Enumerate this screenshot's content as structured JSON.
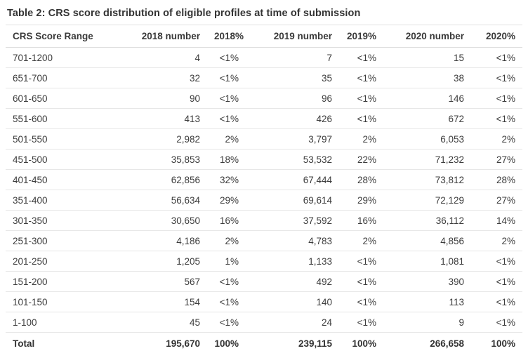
{
  "chart_data": {
    "type": "table",
    "title": "Table 2: CRS score distribution of eligible profiles at time of submission",
    "columns": [
      "CRS Score Range",
      "2018 number",
      "2018%",
      "2019 number",
      "2019%",
      "2020 number",
      "2020%"
    ],
    "rows": [
      [
        "701-1200",
        "4",
        "<1%",
        "7",
        "<1%",
        "15",
        "<1%"
      ],
      [
        "651-700",
        "32",
        "<1%",
        "35",
        "<1%",
        "38",
        "<1%"
      ],
      [
        "601-650",
        "90",
        "<1%",
        "96",
        "<1%",
        "146",
        "<1%"
      ],
      [
        "551-600",
        "413",
        "<1%",
        "426",
        "<1%",
        "672",
        "<1%"
      ],
      [
        "501-550",
        "2,982",
        "2%",
        "3,797",
        "2%",
        "6,053",
        "2%"
      ],
      [
        "451-500",
        "35,853",
        "18%",
        "53,532",
        "22%",
        "71,232",
        "27%"
      ],
      [
        "401-450",
        "62,856",
        "32%",
        "67,444",
        "28%",
        "73,812",
        "28%"
      ],
      [
        "351-400",
        "56,634",
        "29%",
        "69,614",
        "29%",
        "72,129",
        "27%"
      ],
      [
        "301-350",
        "30,650",
        "16%",
        "37,592",
        "16%",
        "36,112",
        "14%"
      ],
      [
        "251-300",
        "4,186",
        "2%",
        "4,783",
        "2%",
        "4,856",
        "2%"
      ],
      [
        "201-250",
        "1,205",
        "1%",
        "1,133",
        "<1%",
        "1,081",
        "<1%"
      ],
      [
        "151-200",
        "567",
        "<1%",
        "492",
        "<1%",
        "390",
        "<1%"
      ],
      [
        "101-150",
        "154",
        "<1%",
        "140",
        "<1%",
        "113",
        "<1%"
      ],
      [
        "1-100",
        "45",
        "<1%",
        "24",
        "<1%",
        "9",
        "<1%"
      ]
    ],
    "total_row": [
      "Total",
      "195,670",
      "100%",
      "239,115",
      "100%",
      "266,658",
      "100%"
    ],
    "layout": {
      "grid": "horizontal-rules-only",
      "header_bold": true,
      "total_bold": true
    },
    "colors": {
      "text": "#3c3c3c",
      "title_text": "#333333",
      "row_border": "#e7e7e7",
      "total_border": "#c9c9c9",
      "background": "#ffffff"
    }
  }
}
